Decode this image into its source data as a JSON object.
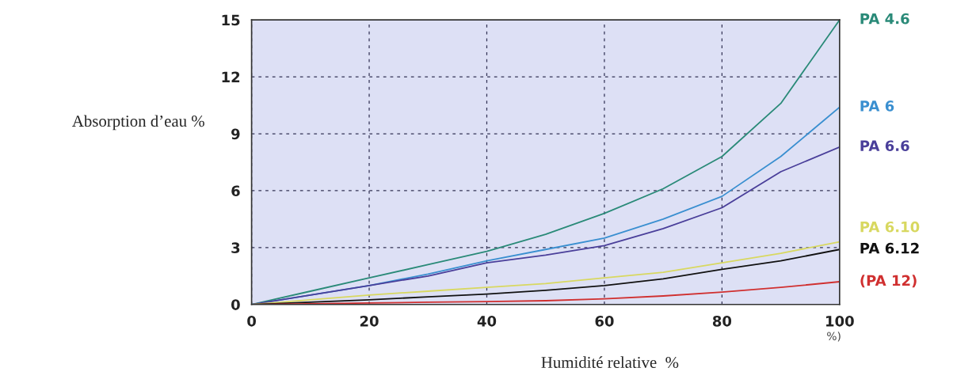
{
  "chart_data": {
    "type": "line",
    "xlabel": "Humidité relative  %",
    "ylabel": "Absorption d’eau %",
    "x": [
      0,
      10,
      20,
      30,
      40,
      50,
      60,
      70,
      80,
      90,
      100
    ],
    "xlim": [
      0,
      100
    ],
    "xticks": [
      0,
      20,
      40,
      60,
      80,
      100
    ],
    "ylim": [
      0,
      15
    ],
    "yticks": [
      0,
      3,
      6,
      9,
      12,
      15
    ],
    "grid": true,
    "legend": false,
    "marker": "none",
    "line_style": "solid",
    "annotations": [
      "%)"
    ],
    "series": [
      {
        "name": "PA 4.6",
        "color": "#2a8a78",
        "values": [
          0,
          0.7,
          1.4,
          2.1,
          2.8,
          3.7,
          4.8,
          6.1,
          7.8,
          10.6,
          15
        ]
      },
      {
        "name": "PA 6",
        "color": "#3a8fd0",
        "values": [
          0,
          0.5,
          1.0,
          1.6,
          2.3,
          2.9,
          3.5,
          4.5,
          5.7,
          7.8,
          10.4
        ]
      },
      {
        "name": "PA 6.6",
        "color": "#4a3f9a",
        "values": [
          0,
          0.5,
          1.0,
          1.5,
          2.2,
          2.6,
          3.1,
          4.0,
          5.1,
          7.0,
          8.3
        ]
      },
      {
        "name": "PA 6.10",
        "color": "#d8d860",
        "values": [
          0,
          0.25,
          0.5,
          0.7,
          0.9,
          1.1,
          1.4,
          1.7,
          2.2,
          2.7,
          3.3
        ]
      },
      {
        "name": "PA 6.12",
        "color": "#111111",
        "values": [
          0,
          0.12,
          0.25,
          0.4,
          0.55,
          0.75,
          1.0,
          1.35,
          1.85,
          2.3,
          2.9
        ]
      },
      {
        "name": "(PA 12)",
        "color": "#d03030",
        "values": [
          0,
          0.04,
          0.08,
          0.12,
          0.15,
          0.2,
          0.3,
          0.45,
          0.65,
          0.9,
          1.2
        ]
      }
    ]
  }
}
